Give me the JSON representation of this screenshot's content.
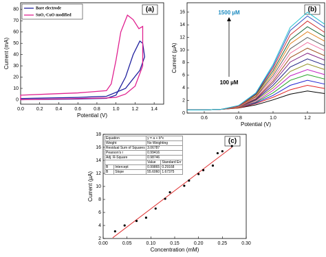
{
  "chart_data": [
    {
      "type": "line",
      "xlabel": "Potential (V)",
      "ylabel": "Current (mA)",
      "annotation": "(a)",
      "xlim": [
        0,
        1.5
      ],
      "ylim": [
        -4,
        86
      ],
      "xticks": [
        {
          "value": 0,
          "label": "0.0"
        },
        0.2,
        0.4,
        0.6,
        0.8,
        {
          "value": 1,
          "label": "1.0"
        },
        1.2,
        1.4
      ],
      "yticks": [
        0,
        10,
        20,
        30,
        40,
        50,
        60,
        70,
        80
      ],
      "legend": "upper left",
      "series": [
        {
          "name": "Bare electrode",
          "color": "#1f1f9e",
          "x": [
            0,
            0.3,
            0.6,
            0.9,
            1.0,
            1.1,
            1.18,
            1.25,
            1.28,
            1.3,
            1.25,
            1.1,
            0.9,
            0.6,
            0.3,
            0,
            0
          ],
          "values": [
            0,
            0.3,
            0.6,
            1.2,
            4,
            20,
            40,
            52,
            50,
            38,
            26,
            10,
            3,
            2,
            1.5,
            1,
            0
          ]
        },
        {
          "name": "SnO₂-CuO modified",
          "color": "#e0208f",
          "x": [
            0,
            0.3,
            0.6,
            0.9,
            0.95,
            1.0,
            1.05,
            1.12,
            1.18,
            1.24,
            1.28,
            1.28,
            1.2,
            1.1,
            1.0,
            0.9,
            0.6,
            0.3,
            0,
            0
          ],
          "values": [
            4,
            5,
            6,
            8,
            14,
            35,
            60,
            75,
            71,
            63,
            65,
            30,
            12,
            5,
            2,
            1.5,
            1,
            0.5,
            0,
            4
          ]
        }
      ]
    },
    {
      "type": "line",
      "xlabel": "Potential (V)",
      "ylabel": "Current (µA)",
      "annotation": "(b)",
      "labels": [
        "1500 µM",
        "100 µM"
      ],
      "xlim": [
        0.5,
        1.3
      ],
      "ylim": [
        0,
        17.5
      ],
      "xticks": [
        0.6,
        0.8,
        {
          "value": 1,
          "label": "1.0"
        },
        1.2
      ],
      "yticks": [
        0,
        2,
        4,
        6,
        8,
        10,
        12,
        14,
        16
      ],
      "x": [
        0.5,
        0.6,
        0.7,
        0.8,
        0.9,
        1.0,
        1.1,
        1.2,
        1.3
      ],
      "series": [
        {
          "color": "#000000",
          "values": [
            0.5,
            0.5,
            0.6,
            0.8,
            1.3,
            2.1,
            3.0,
            3.5,
            3.1
          ]
        },
        {
          "color": "#e02020",
          "values": [
            0.5,
            0.5,
            0.6,
            0.8,
            1.5,
            2.5,
            3.7,
            4.4,
            3.9
          ]
        },
        {
          "color": "#2020d0",
          "values": [
            0.5,
            0.5,
            0.6,
            0.9,
            1.6,
            2.8,
            4.4,
            5.2,
            4.6
          ]
        },
        {
          "color": "#20a020",
          "values": [
            0.5,
            0.5,
            0.6,
            0.9,
            1.7,
            3.2,
            5.2,
            6.1,
            5.4
          ]
        },
        {
          "color": "#c020c0",
          "values": [
            0.5,
            0.5,
            0.6,
            0.9,
            1.8,
            3.6,
            5.9,
            6.9,
            6.1
          ]
        },
        {
          "color": "#909020",
          "values": [
            0.5,
            0.5,
            0.6,
            0.9,
            2.0,
            4.0,
            6.6,
            7.8,
            6.9
          ]
        },
        {
          "color": "#202080",
          "values": [
            0.5,
            0.5,
            0.6,
            1.0,
            2.1,
            4.4,
            7.3,
            8.6,
            7.6
          ]
        },
        {
          "color": "#802080",
          "values": [
            0.5,
            0.5,
            0.6,
            1.0,
            2.2,
            4.8,
            8.1,
            9.5,
            8.4
          ]
        },
        {
          "color": "#a05020",
          "values": [
            0.5,
            0.5,
            0.6,
            1.0,
            2.3,
            5.1,
            8.8,
            10.3,
            9.1
          ]
        },
        {
          "color": "#f070a0",
          "values": [
            0.5,
            0.5,
            0.6,
            1.0,
            2.5,
            5.5,
            9.5,
            11.2,
            9.9
          ]
        },
        {
          "color": "#606060",
          "values": [
            0.5,
            0.5,
            0.6,
            1.1,
            2.6,
            5.9,
            10.2,
            12.0,
            10.6
          ]
        },
        {
          "color": "#e08020",
          "values": [
            0.5,
            0.5,
            0.6,
            1.1,
            2.7,
            6.3,
            11.0,
            12.9,
            11.4
          ]
        },
        {
          "color": "#106030",
          "values": [
            0.5,
            0.5,
            0.6,
            1.1,
            2.9,
            6.7,
            11.6,
            13.7,
            12.1
          ]
        },
        {
          "color": "#d03030",
          "values": [
            0.5,
            0.5,
            0.6,
            1.1,
            3.0,
            7.1,
            12.4,
            14.6,
            12.8
          ]
        },
        {
          "color": "#3050c0",
          "values": [
            0.5,
            0.5,
            0.6,
            1.2,
            3.1,
            7.4,
            13.1,
            15.4,
            13.6
          ]
        },
        {
          "color": "#20c0d0",
          "values": [
            0.5,
            0.5,
            0.6,
            1.2,
            3.2,
            7.7,
            13.6,
            16.0,
            14.1
          ]
        }
      ]
    },
    {
      "type": "scatter",
      "xlabel": "Concentration (mM)",
      "ylabel": "Current (µA)",
      "annotation": "(c)",
      "xlim": [
        0,
        0.3
      ],
      "ylim": [
        2,
        18
      ],
      "xticks": [
        {
          "value": 0,
          "label": "0.00"
        },
        {
          "value": 0.05,
          "label": "0.05"
        },
        {
          "value": 0.1,
          "label": "0.10"
        },
        {
          "value": 0.15,
          "label": "0.15"
        },
        {
          "value": 0.2,
          "label": "0.20"
        },
        {
          "value": 0.25,
          "label": "0.25"
        },
        {
          "value": 0.3,
          "label": "0.30"
        }
      ],
      "yticks": [
        2,
        4,
        6,
        8,
        10,
        12,
        14,
        16,
        18
      ],
      "series": [
        {
          "color": "#000000",
          "x": [
            0.025,
            0.045,
            0.07,
            0.09,
            0.11,
            0.13,
            0.14,
            0.17,
            0.18,
            0.2,
            0.21,
            0.23,
            0.24,
            0.25,
            0.27
          ],
          "values": [
            3.1,
            4.0,
            4.7,
            5.2,
            6.6,
            8.1,
            9.1,
            10.1,
            10.9,
            11.9,
            12.5,
            13.2,
            15.1,
            15.4,
            16.2
          ]
        }
      ],
      "fit": {
        "color": "#e03030",
        "x": [
          0.02,
          0.27
        ],
        "values": [
          2.11,
          16.01
        ]
      },
      "stats": [
        [
          "Equation",
          "y = a + b*x"
        ],
        [
          "Weight",
          "No Weighting"
        ],
        [
          "Residual Sum of Squares",
          "3.06787"
        ],
        [
          "Pearson's r",
          "0.99416"
        ],
        [
          "Adj. R-Square",
          "0.98746"
        ]
      ],
      "columns": [
        "Value",
        "Standard Err"
      ],
      "params": [
        [
          "B",
          "Intercept",
          "0.99865",
          "0.29168"
        ],
        [
          "B",
          "Slope",
          "55.6060",
          "1.67375"
        ]
      ]
    }
  ]
}
